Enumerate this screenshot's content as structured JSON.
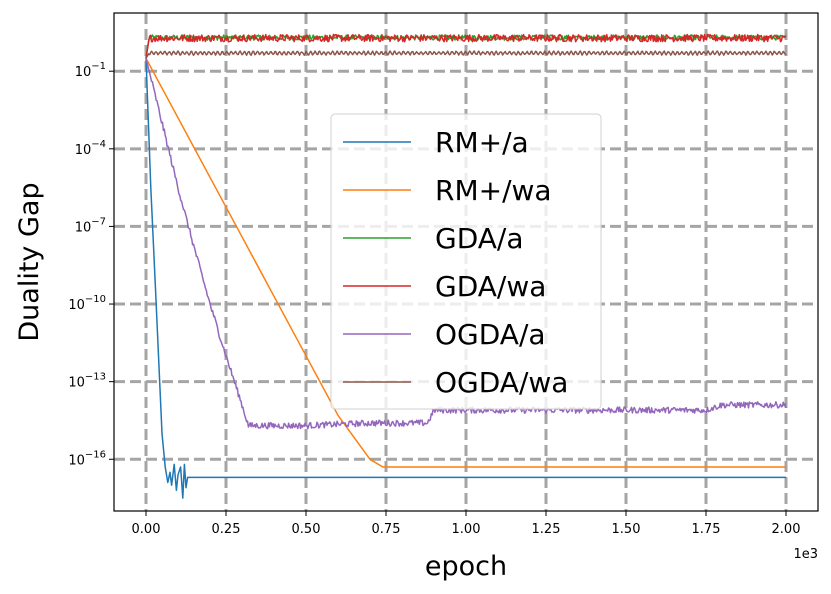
{
  "chart_data": {
    "type": "line",
    "title": "",
    "xlabel": "epoch",
    "ylabel": "Duality Gap",
    "x_offset_text": "1e3",
    "xscale": "linear",
    "yscale": "log",
    "xlim": [
      -0.1,
      2.1
    ],
    "ylim_log10": [
      -18.0,
      1.25
    ],
    "grid": true,
    "legend_position": "center",
    "x_ticks": [
      0.0,
      0.25,
      0.5,
      0.75,
      1.0,
      1.25,
      1.5,
      1.75,
      2.0
    ],
    "x_tick_labels": [
      "0.00",
      "0.25",
      "0.50",
      "0.75",
      "1.00",
      "1.25",
      "1.50",
      "1.75",
      "2.00"
    ],
    "y_tick_exponents": [
      -1,
      -4,
      -7,
      -10,
      -13,
      -16
    ],
    "y_tick_labels": [
      "10",
      "10",
      "10",
      "10",
      "10",
      "10"
    ],
    "y_tick_superscripts": [
      "−1",
      "−4",
      "−7",
      "−10",
      "−13",
      "−16"
    ],
    "series": [
      {
        "name": "RM+/a",
        "color": "#1f77b4",
        "x": [
          0.0,
          0.015,
          0.03,
          0.05,
          0.06,
          0.068,
          0.075,
          0.08,
          0.088,
          0.095,
          0.1,
          0.108,
          0.115,
          0.12,
          0.125,
          0.13,
          0.14,
          1.0,
          2.0
        ],
        "log10_y": [
          -0.5,
          -5.5,
          -9.5,
          -15.0,
          -16.3,
          -16.9,
          -16.5,
          -17.0,
          -16.2,
          -17.2,
          -16.6,
          -16.3,
          -17.5,
          -16.2,
          -17.1,
          -16.7,
          -16.7,
          -16.7,
          -16.7
        ]
      },
      {
        "name": "RM+/wa",
        "color": "#ff7f0e",
        "x": [
          0.0,
          0.1,
          0.2,
          0.3,
          0.4,
          0.5,
          0.6,
          0.7,
          0.74,
          0.75,
          1.0,
          1.5,
          2.0
        ],
        "log10_y": [
          -0.5,
          -2.8,
          -5.1,
          -7.4,
          -9.7,
          -12.0,
          -14.3,
          -16.0,
          -16.3,
          -16.3,
          -16.3,
          -16.3,
          -16.3
        ]
      },
      {
        "name": "GDA/a",
        "color": "#2ca02c",
        "x": [
          0.0,
          0.01,
          2.0
        ],
        "log10_y": [
          -0.5,
          0.3,
          0.3
        ],
        "noise_amplitude": 0.1
      },
      {
        "name": "GDA/wa",
        "color": "#d62728",
        "x": [
          0.0,
          0.01,
          2.0
        ],
        "log10_y": [
          -0.5,
          0.28,
          0.28
        ],
        "noise_amplitude": 0.14
      },
      {
        "name": "OGDA/a",
        "color": "#9467bd",
        "x": [
          0.0,
          0.05,
          0.1,
          0.15,
          0.2,
          0.25,
          0.3,
          0.32,
          0.35,
          0.5,
          0.7,
          0.88,
          0.9,
          0.95,
          1.2,
          1.5,
          1.75,
          1.8,
          2.0
        ],
        "log10_y": [
          -0.5,
          -3.0,
          -5.5,
          -7.8,
          -10.0,
          -12.0,
          -13.9,
          -14.7,
          -14.7,
          -14.7,
          -14.6,
          -14.6,
          -14.1,
          -14.1,
          -14.1,
          -14.1,
          -14.1,
          -13.9,
          -13.9
        ],
        "noise_amplitude": 0.12
      },
      {
        "name": "OGDA/wa",
        "color": "#8c564b",
        "x": [
          0.0,
          0.01,
          2.0
        ],
        "log10_y": [
          -0.5,
          -0.3,
          -0.3
        ],
        "noise_amplitude": 0.09
      }
    ]
  }
}
